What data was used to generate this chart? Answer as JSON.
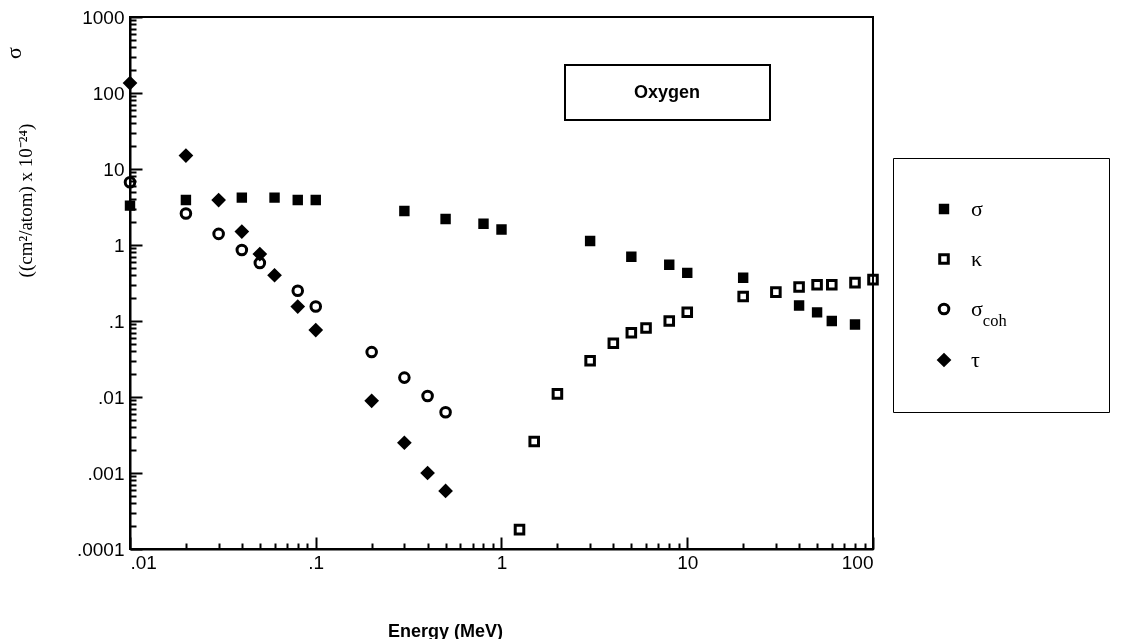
{
  "chart_data": {
    "type": "scatter",
    "xlabel": "Energy   (MeV)",
    "ylabel": "((cm²/atom) x 10⁻²⁴)",
    "annotations": [
      "Oxygen",
      "σ"
    ],
    "log": "xy",
    "legend": "right",
    "xlim": [
      0.01,
      100
    ],
    "ylim": [
      0.0001,
      1000
    ],
    "xticks": [
      {
        "value": 0.01,
        "label": ".01"
      },
      {
        "value": 0.02,
        "label": null
      },
      {
        "value": 0.03,
        "label": null
      },
      {
        "value": 0.04,
        "label": null
      },
      {
        "value": 0.05,
        "label": null
      },
      {
        "value": 0.06,
        "label": null
      },
      {
        "value": 0.07,
        "label": null
      },
      {
        "value": 0.08,
        "label": null
      },
      {
        "value": 0.09,
        "label": null
      },
      {
        "value": 0.1,
        "label": ".1"
      },
      {
        "value": 0.2,
        "label": null
      },
      {
        "value": 0.3,
        "label": null
      },
      {
        "value": 0.4,
        "label": null
      },
      {
        "value": 0.5,
        "label": null
      },
      {
        "value": 0.6,
        "label": null
      },
      {
        "value": 0.7,
        "label": null
      },
      {
        "value": 0.8,
        "label": null
      },
      {
        "value": 0.9,
        "label": null
      },
      1,
      {
        "value": 2,
        "label": null
      },
      {
        "value": 3,
        "label": null
      },
      {
        "value": 4,
        "label": null
      },
      {
        "value": 5,
        "label": null
      },
      {
        "value": 6,
        "label": null
      },
      {
        "value": 7,
        "label": null
      },
      {
        "value": 8,
        "label": null
      },
      {
        "value": 9,
        "label": null
      },
      10,
      {
        "value": 20,
        "label": null
      },
      {
        "value": 30,
        "label": null
      },
      {
        "value": 40,
        "label": null
      },
      {
        "value": 50,
        "label": null
      },
      {
        "value": 60,
        "label": null
      },
      {
        "value": 70,
        "label": null
      },
      {
        "value": 80,
        "label": null
      },
      {
        "value": 90,
        "label": null
      },
      100
    ],
    "yticks": [
      {
        "value": 0.0001,
        "label": ".0001"
      },
      {
        "value": 0.0002,
        "label": null
      },
      {
        "value": 0.0003,
        "label": null
      },
      {
        "value": 0.0004,
        "label": null
      },
      {
        "value": 0.0005,
        "label": null
      },
      {
        "value": 0.0006,
        "label": null
      },
      {
        "value": 0.0007,
        "label": null
      },
      {
        "value": 0.0008,
        "label": null
      },
      {
        "value": 0.0009,
        "label": null
      },
      {
        "value": 0.001,
        "label": ".001"
      },
      {
        "value": 0.002,
        "label": null
      },
      {
        "value": 0.003,
        "label": null
      },
      {
        "value": 0.004,
        "label": null
      },
      {
        "value": 0.005,
        "label": null
      },
      {
        "value": 0.006,
        "label": null
      },
      {
        "value": 0.007,
        "label": null
      },
      {
        "value": 0.008,
        "label": null
      },
      {
        "value": 0.009,
        "label": null
      },
      {
        "value": 0.01,
        "label": ".01"
      },
      {
        "value": 0.02,
        "label": null
      },
      {
        "value": 0.03,
        "label": null
      },
      {
        "value": 0.04,
        "label": null
      },
      {
        "value": 0.05,
        "label": null
      },
      {
        "value": 0.06,
        "label": null
      },
      {
        "value": 0.07,
        "label": null
      },
      {
        "value": 0.08,
        "label": null
      },
      {
        "value": 0.09,
        "label": null
      },
      {
        "value": 0.1,
        "label": ".1"
      },
      {
        "value": 0.2,
        "label": null
      },
      {
        "value": 0.3,
        "label": null
      },
      {
        "value": 0.4,
        "label": null
      },
      {
        "value": 0.5,
        "label": null
      },
      {
        "value": 0.6,
        "label": null
      },
      {
        "value": 0.7,
        "label": null
      },
      {
        "value": 0.8,
        "label": null
      },
      {
        "value": 0.9,
        "label": null
      },
      1,
      {
        "value": 2,
        "label": null
      },
      {
        "value": 3,
        "label": null
      },
      {
        "value": 4,
        "label": null
      },
      {
        "value": 5,
        "label": null
      },
      {
        "value": 6,
        "label": null
      },
      {
        "value": 7,
        "label": null
      },
      {
        "value": 8,
        "label": null
      },
      {
        "value": 9,
        "label": null
      },
      10,
      {
        "value": 20,
        "label": null
      },
      {
        "value": 30,
        "label": null
      },
      {
        "value": 40,
        "label": null
      },
      {
        "value": 50,
        "label": null
      },
      {
        "value": 60,
        "label": null
      },
      {
        "value": 70,
        "label": null
      },
      {
        "value": 80,
        "label": null
      },
      {
        "value": 90,
        "label": null
      },
      100,
      {
        "value": 200,
        "label": null
      },
      {
        "value": 300,
        "label": null
      },
      {
        "value": 400,
        "label": null
      },
      {
        "value": 500,
        "label": null
      },
      {
        "value": 600,
        "label": null
      },
      {
        "value": 700,
        "label": null
      },
      {
        "value": 800,
        "label": null
      },
      {
        "value": 900,
        "label": null
      },
      1000
    ],
    "series": [
      {
        "name": "σ",
        "color": "#000000",
        "marker": "square",
        "x": [
          0.01,
          0.02,
          0.04,
          0.06,
          0.08,
          0.1,
          0.3,
          0.5,
          0.8,
          1,
          3,
          5,
          8,
          10,
          20,
          40,
          50,
          60,
          80
        ],
        "values": [
          3.3,
          3.9,
          4.2,
          4.2,
          3.9,
          3.9,
          2.8,
          2.2,
          1.9,
          1.6,
          1.13,
          0.7,
          0.55,
          0.43,
          0.37,
          0.16,
          0.13,
          0.1,
          0.09
        ]
      },
      {
        "name": "κ",
        "color": "#000000",
        "marker": "square",
        "x": [
          1.25,
          1.5,
          2,
          3,
          4,
          5,
          6,
          8,
          10,
          20,
          30,
          40,
          50,
          60,
          80,
          100
        ],
        "values": [
          0.00018,
          0.0026,
          0.011,
          0.03,
          0.051,
          0.07,
          0.081,
          0.1,
          0.13,
          0.21,
          0.24,
          0.28,
          0.3,
          0.3,
          0.32,
          0.35
        ]
      },
      {
        "name": "σ$_{coh}$",
        "color": "#000000",
        "marker": "circle",
        "x": [
          0.01,
          0.02,
          0.03,
          0.04,
          0.05,
          0.08,
          0.1,
          0.2,
          0.3,
          0.4,
          0.5
        ],
        "values": [
          6.7,
          2.6,
          1.4,
          0.86,
          0.58,
          0.25,
          0.155,
          0.039,
          0.018,
          0.0103,
          0.0063
        ]
      },
      {
        "name": "τ",
        "color": "#000000",
        "marker": "diamond",
        "x": [
          0.01,
          0.02,
          0.03,
          0.04,
          0.05,
          0.06,
          0.08,
          0.1,
          0.2,
          0.3,
          0.4,
          0.5
        ],
        "values": [
          135,
          15,
          3.9,
          1.5,
          0.76,
          0.4,
          0.155,
          0.076,
          0.0089,
          0.0025,
          0.001,
          0.00058
        ]
      }
    ]
  }
}
